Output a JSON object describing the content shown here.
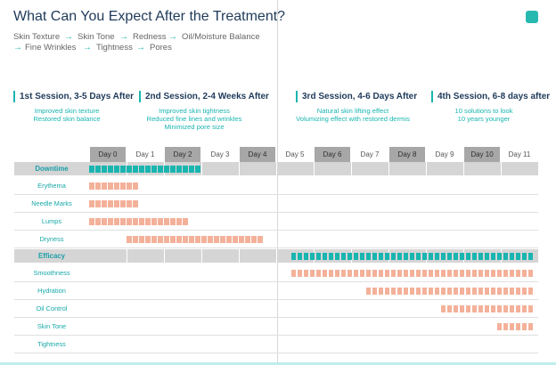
{
  "title": "What Can You Expect After the Treatment?",
  "concerns": [
    "Skin Texture",
    "Skin Tone",
    "Redness",
    "Oil/Moisture Balance",
    "Fine Wrinkles",
    "Tightness",
    "Pores"
  ],
  "arrow_glyph": "→",
  "sessions": [
    {
      "title": "1st Session, 3-5 Days After",
      "lines": [
        "Improved skin texture",
        "Restored skin balance"
      ]
    },
    {
      "title": "2nd Session, 2-4 Weeks After",
      "lines": [
        "Improved skin tightness",
        "Reduced fine lines and wrinkles",
        "Minimized pore size"
      ]
    },
    {
      "title": "3rd Session, 4-6 Days After",
      "lines": [
        "Natural skin lifting effect",
        "Volumizing effect with restored dermis"
      ]
    },
    {
      "title": "4th Session, 6-8 days after",
      "lines": [
        "10 solutions to look",
        "10 years younger"
      ]
    }
  ],
  "days": [
    "Day 0",
    "Day 1",
    "Day 2",
    "Day 3",
    "Day 4",
    "Day 5",
    "Day 6",
    "Day 7",
    "Day 8",
    "Day 9",
    "Day 10",
    "Day 11"
  ],
  "colors": {
    "teal": "#19b5b0",
    "salmon": "#f4b19a",
    "title": "#1f3a5a",
    "header_dark": "#a7a7a7",
    "group_bg": "#d5d5d5"
  },
  "groups": [
    {
      "label": "Downtime",
      "bar": {
        "start": 0,
        "end": 3.05,
        "color": "#19b5b0"
      },
      "rows": [
        {
          "label": "Erythema",
          "start": 0,
          "end": 1.45
        },
        {
          "label": "Needle Marks",
          "start": 0,
          "end": 1.45
        },
        {
          "label": "Lumps",
          "start": 0,
          "end": 2.65
        },
        {
          "label": "Dryness",
          "start": 1.0,
          "end": 4.7
        }
      ]
    },
    {
      "label": "Efficacy",
      "bar": {
        "start": 5.4,
        "end": 12,
        "color": "#19b5b0"
      },
      "rows": [
        {
          "label": "Smoothness",
          "start": 5.4,
          "end": 12
        },
        {
          "label": "Hydration",
          "start": 7.4,
          "end": 12
        },
        {
          "label": "Oil Control",
          "start": 9.4,
          "end": 12
        },
        {
          "label": "Skin Tone",
          "start": 10.9,
          "end": 12
        },
        {
          "label": "Tightness",
          "start": 12,
          "end": 12
        }
      ]
    }
  ]
}
